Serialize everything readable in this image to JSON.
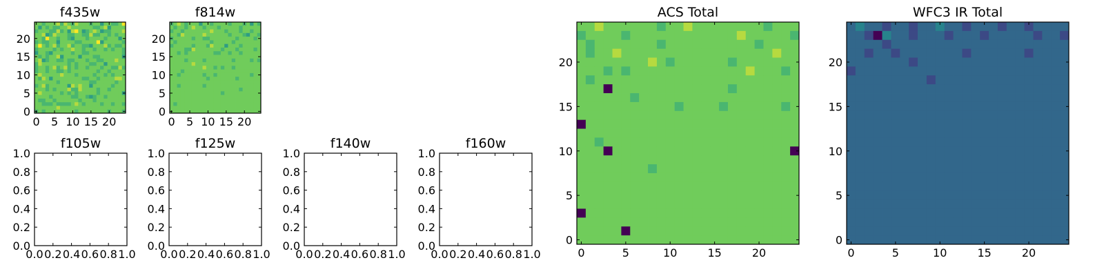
{
  "colormap": "viridis",
  "colors": {
    "background": "#ffffff",
    "axis": "#000000",
    "viridis_low": "#440154",
    "viridis_mid": "#21918c",
    "viridis_high": "#fde725"
  },
  "chart_data": [
    {
      "id": "f435w",
      "type": "heatmap",
      "title": "f435w",
      "rows": 25,
      "cols": 25,
      "xlim": [
        -0.5,
        24.5
      ],
      "ylim": [
        -0.5,
        24.5
      ],
      "xticks": [
        0,
        5,
        10,
        15,
        20
      ],
      "yticks": [
        0,
        5,
        10,
        15,
        20
      ],
      "values": [
        "HHGHHHIGIHGIHHHGHHFHHGGHJ",
        "HFHGHGGHHIHHHHHHGGHIFHHHH",
        "GHHHGGIGHFIJHFGHIHFGGHHHI",
        "HHIFGIHHHGGHHGGIGGHHGHGHH",
        "HHGJHHGHHGFHHHGHHHHGHHHFH",
        "GHGGHHFHHHHGGHHHHJFHHHHHG",
        "HJHGHIGHHIGHHGGFHHHIGHGGH",
        "GHHHHGHGHHIHHGHHGHHGHGHHG",
        "FHHGFHHHHHGHHGGHHHHHHHHHG",
        "HGHGHHIFHHHHFHHHGGHHHHHHF",
        "HIFGHHGGHGGHHHGHHGGHHHIHH",
        "GIHHHHHHHGHGHHHGGHHFHHHHH",
        "GHHGHIGHIGHGHHGHHHGHHGGIG",
        "GHHGHHGGHGHHHHHHHGHHGHHHH",
        "HIHHHHHIHHHGHHHHGHHGHGHHH",
        "HGIHFHHHHHHHHGGHHGHHHHIIH",
        "HHHHHHGHHHHHHHHGGHHHHHGHH",
        "GHIGHHHHHFIHIHHFHHHHHGHHH",
        "HHHGHGHHHIGGIHHHHGHHGHHHH",
        "HIHHHHHGHGHGHHHHHGHHHHHHF",
        "HHHHGHHHHHGGHHGFGHHGHHHHH",
        "HGGHHGHHHHHHGHHHGHHHHHHHH",
        "HHGGGHGGGGHIHGHHHHGHHGHHG",
        "HHHHHHIHHHHHHHHHHHHHHHHHH",
        "GHGHHHHHHHHGHHHHHHHHGHHHG"
      ]
    },
    {
      "id": "f814w",
      "type": "heatmap",
      "title": "f814w",
      "rows": 25,
      "cols": 25,
      "xlim": [
        -0.5,
        24.5
      ],
      "ylim": [
        -0.5,
        24.5
      ],
      "xticks": [
        0,
        5,
        10,
        15,
        20
      ],
      "yticks": [
        0,
        5,
        10,
        15,
        20
      ],
      "values": [
        "GHIHGHHHFHHGHHHHGHHHGHFHG",
        "HGHHGHIHHGHHHGHHHHHGHHHHH",
        "GHHGHHHHHHHIHHHGHHHGHHGHH",
        "HHGIHHHHHIHHHHHHGHHHGFHHG",
        "GHHHHHGHHGGHHHHHHHGHHHHGH",
        "HGHHHHHHHHHGHHHHHGHHHHHHH",
        "GHHHHHGHHHGIHHHFHHHGHHHHH",
        "HHHHGGIHHHHHHHGHHHGHHHHGH",
        "HHGHGHHHHHHHGGHHGHHGHHHHH",
        "HHHHHHHHHHHHHHHHHHHHHHHHH",
        "HHHHGHHHHGHHHHHHHGHHHHGHG",
        "HHHHHHIHHHHHHHHHHHHHHHHHH",
        "HHHHHHHHHIHHGHGHHGHHHHHHH",
        "HHHGHHHHHHHHHHHHHHHHHHHHH",
        "HHGHHHHHHGHHGHHHHHHHHHGHH",
        "HHHHHHHHHHGHHHHHHHGHHHHHH",
        "HHHHHHHHHHHHHHHHHHHHHHHHH",
        "HHGHHHHHHGHHHHHHHHHHHHHHH",
        "HHHHHHHHHHHHHHHHHHHGHHHHH",
        "HHHHHHHHHHHHHHGHHHHHHHHHH",
        "HHHHHHHHHHHHHHHHHHHHHHHHH",
        "HHHHHHHHHHHHHHHHHHHHHHHHH",
        "HGHHHHHHHHHHHHHHHHHHHHHHH",
        "HHHHHHHHHHHHHHHHHHHHHHHHH",
        "HHHHHHHHHHHHHHHHHHHHHHHHH"
      ]
    },
    {
      "id": "f105w",
      "type": "empty",
      "title": "f105w",
      "xlim": [
        0,
        1
      ],
      "ylim": [
        0,
        1
      ],
      "xticks": [
        "0.0",
        "0.2",
        "0.4",
        "0.6",
        "0.8",
        "1.0"
      ],
      "yticks": [
        "0.0",
        "0.2",
        "0.4",
        "0.6",
        "0.8",
        "1.0"
      ]
    },
    {
      "id": "f125w",
      "type": "empty",
      "title": "f125w",
      "xlim": [
        0,
        1
      ],
      "ylim": [
        0,
        1
      ],
      "xticks": [
        "0.0",
        "0.2",
        "0.4",
        "0.6",
        "0.8",
        "1.0"
      ],
      "yticks": [
        "0.0",
        "0.2",
        "0.4",
        "0.6",
        "0.8",
        "1.0"
      ]
    },
    {
      "id": "f140w",
      "type": "empty",
      "title": "f140w",
      "xlim": [
        0,
        1
      ],
      "ylim": [
        0,
        1
      ],
      "xticks": [
        "0.0",
        "0.2",
        "0.4",
        "0.6",
        "0.8",
        "1.0"
      ],
      "yticks": [
        "0.0",
        "0.2",
        "0.4",
        "0.6",
        "0.8",
        "1.0"
      ]
    },
    {
      "id": "f160w",
      "type": "empty",
      "title": "f160w",
      "xlim": [
        0,
        1
      ],
      "ylim": [
        0,
        1
      ],
      "xticks": [
        "0.0",
        "0.2",
        "0.4",
        "0.6",
        "0.8",
        "1.0"
      ],
      "yticks": [
        "0.0",
        "0.2",
        "0.4",
        "0.6",
        "0.8",
        "1.0"
      ]
    },
    {
      "id": "acs-total",
      "type": "heatmap",
      "title": "ACS Total",
      "rows": 25,
      "cols": 25,
      "xlim": [
        -0.5,
        24.5
      ],
      "ylim": [
        -0.5,
        24.5
      ],
      "xticks": [
        0,
        5,
        10,
        15,
        20
      ],
      "yticks": [
        0,
        5,
        10,
        15,
        20
      ],
      "values": [
        "HHIHHHHHHGHHIHHHHHHHHGHHH",
        "GHHHHGHHHHHHHHHHHHIHHHHHG",
        "HGHHHHHHHGHHHHHHHHHHGHHHH",
        "HGHHIHHHHHHHHHHHHHHHHHIHH",
        "HHHHHHHHIHGHHHHHHGHHHHHHH",
        "HHHGHGHHHHHHHHHHHHHIHHHGH",
        "HGHHHHHHHHHHHHHHHHHHHHHHH",
        "HHHAHHHHHHHHHHHHHGHHHHHHH",
        "HHHHHHGHHHHHHHHHHHHHHHHHH",
        "HHHHHHHHHHHGHHHHGHHHHHHGH",
        "HHHHHHHHHHHHHHHHHHHHHHHHH",
        "AHHHHHHHHHHHHHHHHHHHHHHHH",
        "HHHHHHHHHHHHHHHHHHHHHHHHH",
        "HHGHHHHHHHHHHHHHHHHHHHHHH",
        "HHHAHHHHHHHHHHHHHHHHHHHHA",
        "HHHHHHHHHHHHHHHHHHHHHHHHH",
        "HHHHHHHHGHHHHHHHHHHHHHHHH",
        "HHHHHHHHHHHHHHHHHHHHHHHHH",
        "HHHHHHHHHHHHHHHHHHHHHHHHH",
        "HHHHHHHHHHHHHHHHHHHHHHHHH",
        "HHHHHHHHHHHHHHHHHHHHHHHHH",
        "AHHHHHHHHHHHHHHHHHHHHHHHH",
        "HHHHHHHHHHHHHHHHHHHHHHHHH",
        "HHHHHAHHHHHHHHHHHHHHHHHHH",
        "HHHHHHHHHHHHHHHHHHHHHHHHH"
      ]
    },
    {
      "id": "wfc3-ir-total",
      "type": "heatmap",
      "title": "WFC3 IR Total",
      "rows": 25,
      "cols": 25,
      "xlim": [
        -0.5,
        24.5
      ],
      "ylim": [
        -0.5,
        24.5
      ],
      "xticks": [
        0,
        5,
        10,
        15,
        20
      ],
      "yticks": [
        0,
        5,
        10,
        15,
        20
      ],
      "values": [
        "DEDDCDDCDDEDDCDDDCDDCDDDD",
        "DDCAEDDCDDDCDDDCDDDDDCDDC",
        "DDDDCDDDDDDDDDDDDDDDDDDDD",
        "DDCDDCDDDDDDDCDDDDDDCDDDD",
        "DDDDDDDCDDDDDDDDDDDDDDDDD",
        "CDDDDDDDDDDDDDDDDDDDDDDDD",
        "DDDDDDDDDCDDDDDDDDDDDDDDD",
        "DDDDDDDDDDDDDDDDDDDDDDDDD",
        "DDDDDDDDDDDDDDDDDDDDDDDDD",
        "DDDDDDDDDDDDDDDDDDDDDDDDD",
        "DDDDDDDDDDDDDDDDDDDDDDDDD",
        "DDDDDDDDDDDDDDDDDDDDDDDDD",
        "DDDDDDDDDDDDDDDDDDDDDDDDD",
        "DDDDDDDDDDDDDDDDDDDDDDDDD",
        "DDDDDDDDDDDDDDDDDDDDDDDDD",
        "DDDDDDDDDDDDDDDDDDDDDDDDD",
        "DDDDDDDDDDDDDDDDDDDDDDDDD",
        "DDDDDDDDDDDDDDDDDDDDDDDDD",
        "DDDDDDDDDDDDDDDDDDDDDDDDD",
        "DDDDDDDDDDDDDDDDDDDDDDDDD",
        "DDDDDDDDDDDDDDDDDDDDDDDDD",
        "DDDDDDDDDDDDDDDDDDDDDDDDD",
        "DDDDDDDDDDDDDDDDDDDDDDDDD",
        "DDDDDDDDDDDDDDDDDDDDDDDDD",
        "DDDDDDDDDDDDDDDDDDDDDDDDD"
      ]
    }
  ]
}
